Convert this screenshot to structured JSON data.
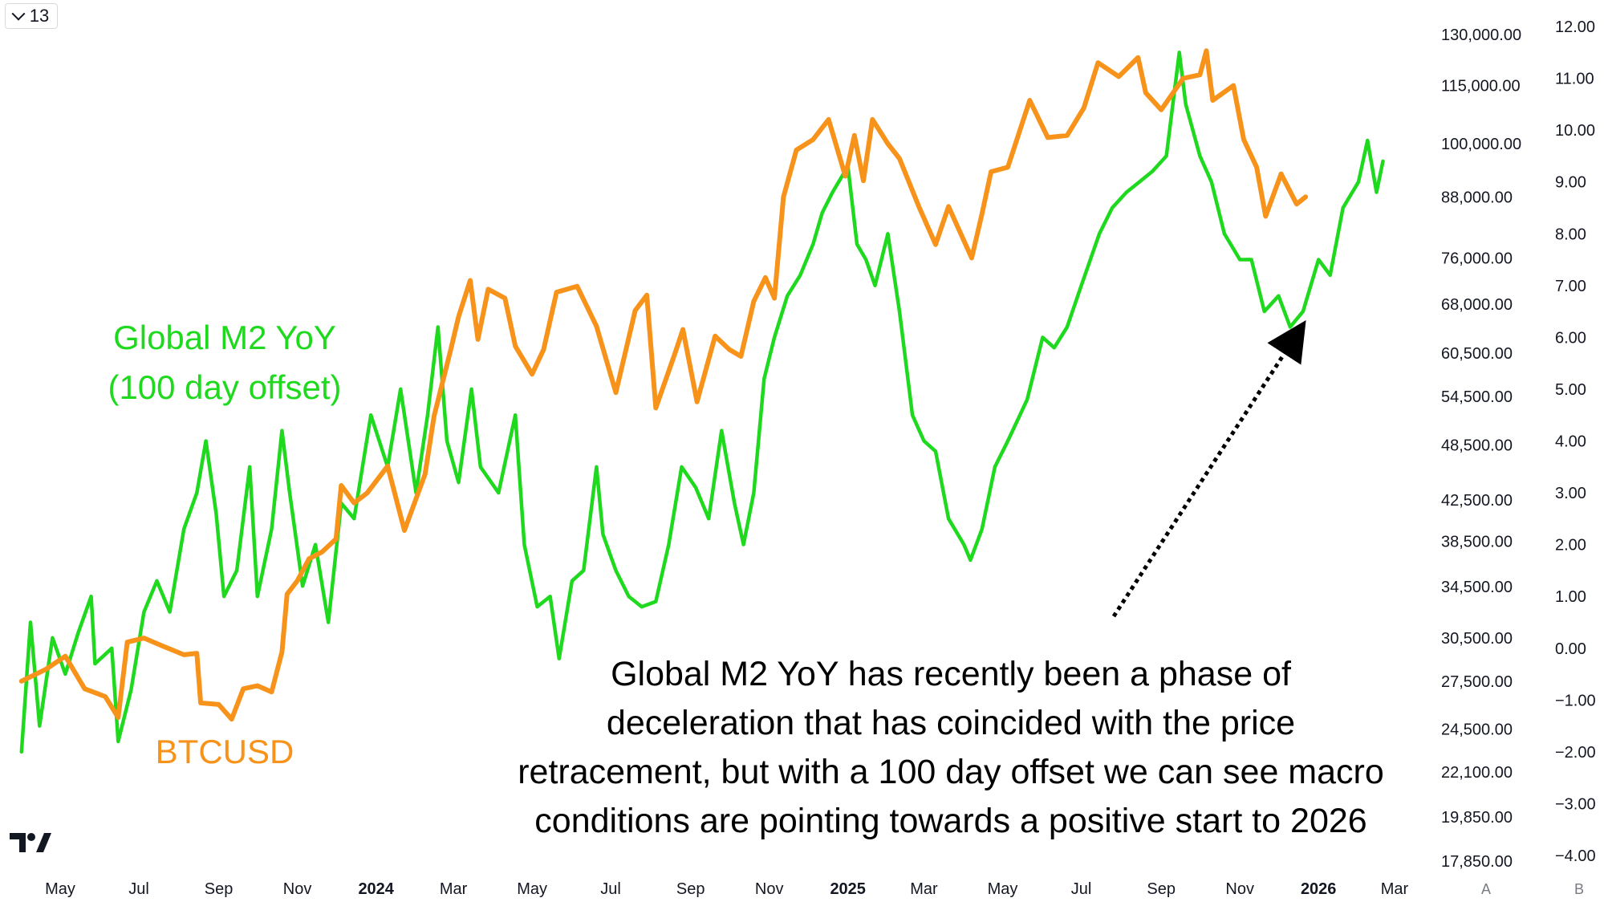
{
  "toolbar": {
    "interval_label": "13"
  },
  "scale_buttons": {
    "auto": "A",
    "log": "B"
  },
  "labels": {
    "m2_line1": "Global M2 YoY",
    "m2_line2": "(100 day offset)",
    "btc": "BTCUSD"
  },
  "annotation": [
    "Global M2 YoY has recently been a phase of",
    "deceleration that has coincided with the price",
    "retracement, but with a 100 day offset we can see macro",
    "conditions are pointing towards a positive start to 2026"
  ],
  "colors": {
    "btc": "#f7931a",
    "m2": "#1ed91e",
    "arrow": "#000000"
  },
  "chart_data": {
    "type": "line",
    "x_ticks": [
      {
        "date": "2023-05-01",
        "label": "May",
        "bold": false
      },
      {
        "date": "2023-07-01",
        "label": "Jul",
        "bold": false
      },
      {
        "date": "2023-09-01",
        "label": "Sep",
        "bold": false
      },
      {
        "date": "2023-11-01",
        "label": "Nov",
        "bold": false
      },
      {
        "date": "2024-01-01",
        "label": "2024",
        "bold": true
      },
      {
        "date": "2024-03-01",
        "label": "Mar",
        "bold": false
      },
      {
        "date": "2024-05-01",
        "label": "May",
        "bold": false
      },
      {
        "date": "2024-07-01",
        "label": "Jul",
        "bold": false
      },
      {
        "date": "2024-09-01",
        "label": "Sep",
        "bold": false
      },
      {
        "date": "2024-11-01",
        "label": "Nov",
        "bold": false
      },
      {
        "date": "2025-01-01",
        "label": "2025",
        "bold": true
      },
      {
        "date": "2025-03-01",
        "label": "Mar",
        "bold": false
      },
      {
        "date": "2025-05-01",
        "label": "May",
        "bold": false
      },
      {
        "date": "2025-07-01",
        "label": "Jul",
        "bold": false
      },
      {
        "date": "2025-09-01",
        "label": "Sep",
        "bold": false
      },
      {
        "date": "2025-11-01",
        "label": "Nov",
        "bold": false
      },
      {
        "date": "2026-01-01",
        "label": "2026",
        "bold": true
      },
      {
        "date": "2026-03-01",
        "label": "Mar",
        "bold": false
      }
    ],
    "left_axis": {
      "scale": "log",
      "ticks": [
        "130,000.00",
        "115,000.00",
        "100,000.00",
        "88,000.00",
        "76,000.00",
        "68,000.00",
        "60,500.00",
        "54,500.00",
        "48,500.00",
        "42,500.00",
        "38,500.00",
        "34,500.00",
        "30,500.00",
        "27,500.00",
        "24,500.00",
        "22,100.00",
        "19,850.00",
        "17,850.00"
      ],
      "tick_values": [
        130000,
        115000,
        100000,
        88000,
        76000,
        68000,
        60500,
        54500,
        48500,
        42500,
        38500,
        34500,
        30500,
        27500,
        24500,
        22100,
        19850,
        17850
      ]
    },
    "right_axis": {
      "scale": "linear",
      "ticks": [
        "12.00",
        "11.00",
        "10.00",
        "9.00",
        "8.00",
        "7.00",
        "6.00",
        "5.00",
        "4.00",
        "3.00",
        "2.00",
        "1.00",
        "0.00",
        "−1.00",
        "−2.00",
        "−3.00",
        "−4.00"
      ],
      "tick_values": [
        12,
        11,
        10,
        9,
        8,
        7,
        6,
        5,
        4,
        3,
        2,
        1,
        0,
        -1,
        -2,
        -3,
        -4
      ]
    },
    "series": [
      {
        "name": "BTCUSD",
        "axis": "left",
        "points": [
          [
            "2023-04-01",
            27500
          ],
          [
            "2023-04-20",
            28300
          ],
          [
            "2023-05-05",
            29200
          ],
          [
            "2023-05-20",
            27000
          ],
          [
            "2023-06-05",
            26500
          ],
          [
            "2023-06-15",
            25200
          ],
          [
            "2023-06-22",
            30200
          ],
          [
            "2023-07-05",
            30500
          ],
          [
            "2023-07-20",
            29900
          ],
          [
            "2023-08-05",
            29300
          ],
          [
            "2023-08-15",
            29400
          ],
          [
            "2023-08-18",
            26100
          ],
          [
            "2023-09-01",
            26000
          ],
          [
            "2023-09-11",
            25100
          ],
          [
            "2023-09-20",
            27000
          ],
          [
            "2023-10-01",
            27200
          ],
          [
            "2023-10-12",
            26800
          ],
          [
            "2023-10-20",
            29500
          ],
          [
            "2023-10-24",
            33900
          ],
          [
            "2023-11-01",
            35000
          ],
          [
            "2023-11-10",
            36900
          ],
          [
            "2023-11-20",
            37500
          ],
          [
            "2023-12-01",
            38700
          ],
          [
            "2023-12-05",
            44000
          ],
          [
            "2023-12-15",
            42200
          ],
          [
            "2023-12-25",
            43200
          ],
          [
            "2024-01-10",
            46100
          ],
          [
            "2024-01-23",
            39500
          ],
          [
            "2024-02-08",
            45200
          ],
          [
            "2024-02-15",
            52000
          ],
          [
            "2024-02-28",
            61000
          ],
          [
            "2024-03-05",
            66000
          ],
          [
            "2024-03-14",
            72000
          ],
          [
            "2024-03-20",
            62500
          ],
          [
            "2024-03-28",
            70500
          ],
          [
            "2024-04-10",
            69000
          ],
          [
            "2024-04-18",
            61500
          ],
          [
            "2024-05-01",
            57500
          ],
          [
            "2024-05-10",
            61000
          ],
          [
            "2024-05-20",
            70000
          ],
          [
            "2024-06-05",
            71000
          ],
          [
            "2024-06-20",
            64500
          ],
          [
            "2024-07-05",
            55000
          ],
          [
            "2024-07-20",
            67000
          ],
          [
            "2024-07-29",
            69500
          ],
          [
            "2024-08-05",
            53000
          ],
          [
            "2024-08-20",
            60500
          ],
          [
            "2024-08-26",
            64000
          ],
          [
            "2024-09-06",
            53800
          ],
          [
            "2024-09-20",
            63000
          ],
          [
            "2024-10-01",
            61000
          ],
          [
            "2024-10-10",
            60000
          ],
          [
            "2024-10-20",
            68500
          ],
          [
            "2024-10-29",
            72500
          ],
          [
            "2024-11-05",
            69000
          ],
          [
            "2024-11-12",
            88000
          ],
          [
            "2024-11-22",
            98500
          ],
          [
            "2024-12-05",
            101000
          ],
          [
            "2024-12-17",
            106000
          ],
          [
            "2024-12-30",
            92500
          ],
          [
            "2025-01-06",
            102000
          ],
          [
            "2025-01-13",
            91500
          ],
          [
            "2025-01-20",
            106000
          ],
          [
            "2025-02-01",
            100000
          ],
          [
            "2025-02-10",
            96500
          ],
          [
            "2025-02-25",
            86000
          ],
          [
            "2025-03-10",
            78500
          ],
          [
            "2025-03-20",
            86000
          ],
          [
            "2025-04-07",
            76000
          ],
          [
            "2025-04-15",
            84500
          ],
          [
            "2025-04-22",
            93500
          ],
          [
            "2025-05-05",
            94500
          ],
          [
            "2025-05-22",
            111000
          ],
          [
            "2025-06-05",
            101500
          ],
          [
            "2025-06-20",
            102000
          ],
          [
            "2025-07-03",
            109000
          ],
          [
            "2025-07-14",
            121500
          ],
          [
            "2025-07-30",
            117500
          ],
          [
            "2025-08-14",
            123000
          ],
          [
            "2025-08-20",
            113000
          ],
          [
            "2025-09-01",
            108500
          ],
          [
            "2025-09-18",
            117000
          ],
          [
            "2025-10-01",
            118000
          ],
          [
            "2025-10-06",
            125000
          ],
          [
            "2025-10-11",
            111000
          ],
          [
            "2025-10-27",
            115000
          ],
          [
            "2025-11-04",
            101000
          ],
          [
            "2025-11-14",
            94500
          ],
          [
            "2025-11-21",
            84000
          ],
          [
            "2025-12-03",
            93000
          ],
          [
            "2025-12-15",
            86500
          ],
          [
            "2025-12-22",
            88000
          ]
        ]
      },
      {
        "name": "Global M2 YoY",
        "axis": "right",
        "points": [
          [
            "2023-04-01",
            -2.0
          ],
          [
            "2023-04-08",
            0.5
          ],
          [
            "2023-04-15",
            -1.5
          ],
          [
            "2023-04-25",
            0.2
          ],
          [
            "2023-05-05",
            -0.5
          ],
          [
            "2023-05-15",
            0.3
          ],
          [
            "2023-05-25",
            1.0
          ],
          [
            "2023-05-28",
            -0.3
          ],
          [
            "2023-06-10",
            0.0
          ],
          [
            "2023-06-15",
            -1.8
          ],
          [
            "2023-06-25",
            -0.8
          ],
          [
            "2023-07-05",
            0.7
          ],
          [
            "2023-07-15",
            1.3
          ],
          [
            "2023-07-25",
            0.7
          ],
          [
            "2023-08-05",
            2.3
          ],
          [
            "2023-08-15",
            3.0
          ],
          [
            "2023-08-22",
            4.0
          ],
          [
            "2023-08-30",
            2.6
          ],
          [
            "2023-09-05",
            1.0
          ],
          [
            "2023-09-15",
            1.5
          ],
          [
            "2023-09-25",
            3.5
          ],
          [
            "2023-10-01",
            1.0
          ],
          [
            "2023-10-12",
            2.3
          ],
          [
            "2023-10-20",
            4.2
          ],
          [
            "2023-10-26",
            3.0
          ],
          [
            "2023-11-05",
            1.2
          ],
          [
            "2023-11-15",
            2.0
          ],
          [
            "2023-11-25",
            0.5
          ],
          [
            "2023-12-05",
            2.8
          ],
          [
            "2023-12-15",
            2.5
          ],
          [
            "2023-12-28",
            4.5
          ],
          [
            "2024-01-10",
            3.5
          ],
          [
            "2024-01-20",
            5.0
          ],
          [
            "2024-02-01",
            3.0
          ],
          [
            "2024-02-10",
            4.5
          ],
          [
            "2024-02-18",
            6.2
          ],
          [
            "2024-02-25",
            4.0
          ],
          [
            "2024-03-05",
            3.2
          ],
          [
            "2024-03-15",
            5.0
          ],
          [
            "2024-03-22",
            3.5
          ],
          [
            "2024-04-05",
            3.0
          ],
          [
            "2024-04-18",
            4.5
          ],
          [
            "2024-04-25",
            2.0
          ],
          [
            "2024-05-05",
            0.8
          ],
          [
            "2024-05-15",
            1.0
          ],
          [
            "2024-05-22",
            -0.2
          ],
          [
            "2024-06-01",
            1.3
          ],
          [
            "2024-06-10",
            1.5
          ],
          [
            "2024-06-20",
            3.5
          ],
          [
            "2024-06-25",
            2.2
          ],
          [
            "2024-07-05",
            1.5
          ],
          [
            "2024-07-15",
            1.0
          ],
          [
            "2024-07-25",
            0.8
          ],
          [
            "2024-08-05",
            0.9
          ],
          [
            "2024-08-15",
            2.0
          ],
          [
            "2024-08-25",
            3.5
          ],
          [
            "2024-09-05",
            3.1
          ],
          [
            "2024-09-15",
            2.5
          ],
          [
            "2024-09-25",
            4.2
          ],
          [
            "2024-10-05",
            2.8
          ],
          [
            "2024-10-12",
            2.0
          ],
          [
            "2024-10-20",
            3.0
          ],
          [
            "2024-10-28",
            5.2
          ],
          [
            "2024-11-05",
            6.0
          ],
          [
            "2024-11-15",
            6.8
          ],
          [
            "2024-11-25",
            7.2
          ],
          [
            "2024-12-05",
            7.8
          ],
          [
            "2024-12-12",
            8.4
          ],
          [
            "2024-12-20",
            8.8
          ],
          [
            "2025-01-01",
            9.3
          ],
          [
            "2025-01-08",
            7.8
          ],
          [
            "2025-01-15",
            7.5
          ],
          [
            "2025-01-22",
            7.0
          ],
          [
            "2025-02-01",
            8.0
          ],
          [
            "2025-02-10",
            6.5
          ],
          [
            "2025-02-20",
            4.5
          ],
          [
            "2025-03-01",
            4.0
          ],
          [
            "2025-03-10",
            3.8
          ],
          [
            "2025-03-20",
            2.5
          ],
          [
            "2025-04-01",
            2.0
          ],
          [
            "2025-04-06",
            1.7
          ],
          [
            "2025-04-15",
            2.3
          ],
          [
            "2025-04-25",
            3.5
          ],
          [
            "2025-05-05",
            4.0
          ],
          [
            "2025-05-20",
            4.8
          ],
          [
            "2025-06-01",
            6.0
          ],
          [
            "2025-06-10",
            5.8
          ],
          [
            "2025-06-20",
            6.2
          ],
          [
            "2025-07-01",
            7.0
          ],
          [
            "2025-07-15",
            8.0
          ],
          [
            "2025-07-25",
            8.5
          ],
          [
            "2025-08-05",
            8.8
          ],
          [
            "2025-08-15",
            9.0
          ],
          [
            "2025-08-25",
            9.2
          ],
          [
            "2025-09-05",
            9.5
          ],
          [
            "2025-09-15",
            11.5
          ],
          [
            "2025-09-20",
            10.5
          ],
          [
            "2025-10-01",
            9.5
          ],
          [
            "2025-10-10",
            9.0
          ],
          [
            "2025-10-20",
            8.0
          ],
          [
            "2025-11-01",
            7.5
          ],
          [
            "2025-11-10",
            7.5
          ],
          [
            "2025-11-20",
            6.5
          ],
          [
            "2025-12-01",
            6.8
          ],
          [
            "2025-12-10",
            6.2
          ],
          [
            "2025-12-20",
            6.5
          ],
          [
            "2026-01-01",
            7.5
          ],
          [
            "2026-01-10",
            7.2
          ],
          [
            "2026-01-20",
            8.5
          ],
          [
            "2026-02-01",
            9.0
          ],
          [
            "2026-02-08",
            9.8
          ],
          [
            "2026-02-15",
            8.8
          ],
          [
            "2026-02-20",
            9.4
          ]
        ]
      }
    ]
  }
}
